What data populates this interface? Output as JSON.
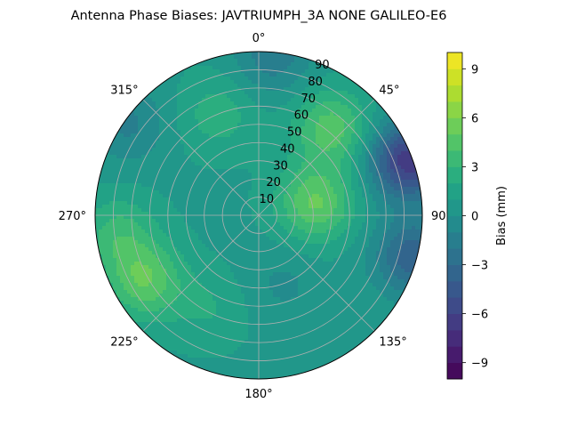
{
  "chart_data": {
    "type": "heatmap",
    "projection": "polar",
    "title": "Antenna Phase Biases: JAVTRIUMPH_3A   NONE GALILEO-E6",
    "angle_direction": "clockwise",
    "zero_location": "top",
    "azimuth_ticks": [
      "0°",
      "45°",
      "90°",
      "135°",
      "180°",
      "225°",
      "270°",
      "315°"
    ],
    "radial_ticks": [
      "10",
      "20",
      "30",
      "40",
      "50",
      "60",
      "70",
      "80",
      "90"
    ],
    "radial_range": [
      0,
      90
    ],
    "grid": true,
    "colormap": "viridis",
    "colorbar": {
      "label": "Bias (mm)",
      "range": [
        -10,
        10
      ],
      "levels": 20,
      "ticks": [
        "−9",
        "−6",
        "−3",
        "0",
        "3",
        "6",
        "9"
      ],
      "tick_values": [
        -9,
        -6,
        -3,
        0,
        3,
        6,
        9
      ]
    },
    "field": {
      "description_units": "azimuth in degrees clockwise from north, zenith angle in degrees, bias in mm",
      "hotspots": [
        {
          "azimuth": 40,
          "zenith": 62,
          "bias": 3.8
        },
        {
          "azimuth": 78,
          "zenith": 32,
          "bias": 4.3
        },
        {
          "azimuth": 240,
          "zenith": 72,
          "bias": 4.0
        },
        {
          "azimuth": 262,
          "zenith": 78,
          "bias": 2.6
        },
        {
          "azimuth": 338,
          "zenith": 60,
          "bias": 1.8
        },
        {
          "azimuth": 208,
          "zenith": 58,
          "bias": 1.2
        }
      ],
      "lows": [
        {
          "azimuth": 70,
          "zenith": 88,
          "bias": -7.5
        },
        {
          "azimuth": 105,
          "zenith": 88,
          "bias": -4.5
        },
        {
          "azimuth": 5,
          "zenith": 88,
          "bias": -2.5
        },
        {
          "azimuth": 305,
          "zenith": 88,
          "bias": -2.0
        },
        {
          "azimuth": 160,
          "zenith": 40,
          "bias": -1.0
        }
      ],
      "baseline": 0.8
    }
  },
  "colors": {
    "grid": "#b0b0b0",
    "viridis": [
      "#440154",
      "#482475",
      "#414487",
      "#355f8d",
      "#2a788e",
      "#21918c",
      "#22a884",
      "#44bf70",
      "#7ad151",
      "#bddf26",
      "#fde725"
    ]
  }
}
